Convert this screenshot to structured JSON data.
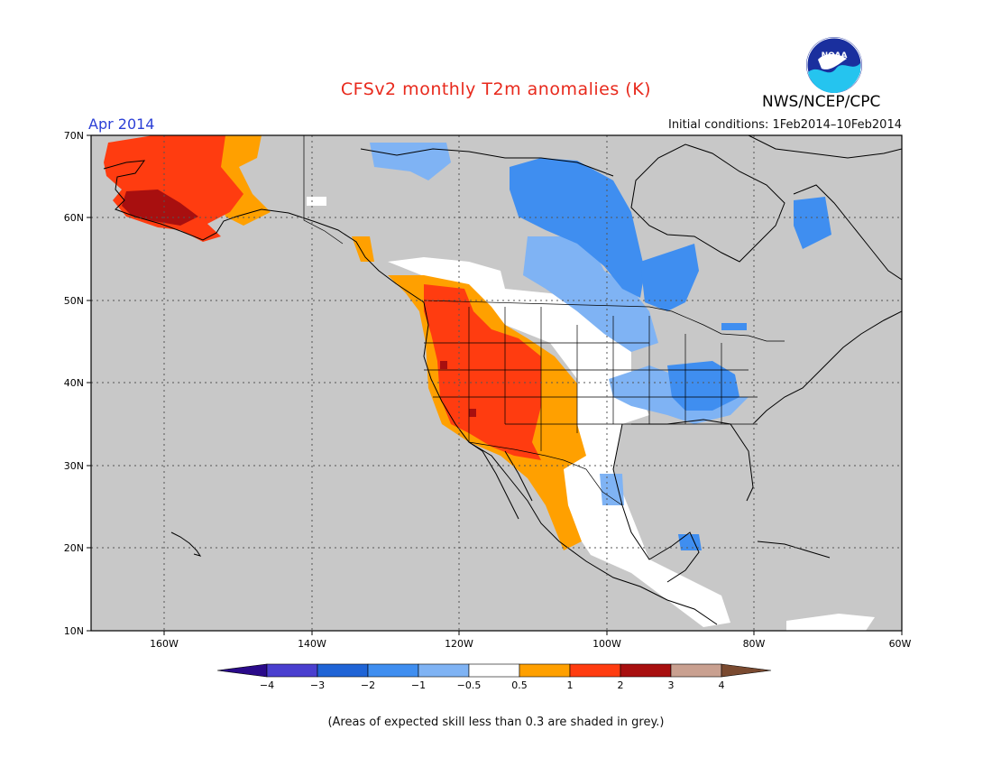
{
  "title": "CFSv2 monthly T2m anomalies (K)",
  "month": "Apr 2014",
  "org": "NWS/NCEP/CPC",
  "logo_text": "NOAA",
  "initial_conditions": "Initial conditions: 1Feb2014–10Feb2014",
  "note": "(Areas of expected skill less than 0.3 are shaded in grey.)",
  "map": {
    "lon_range": [
      -170,
      -60
    ],
    "lat_range": [
      10,
      70
    ],
    "lat_ticks": [
      "70N",
      "60N",
      "50N",
      "40N",
      "30N",
      "20N",
      "10N"
    ],
    "lon_ticks": [
      "160W",
      "140W",
      "120W",
      "100W",
      "80W",
      "60W"
    ],
    "grid": true,
    "background_color": "#c8c8c8"
  },
  "colorbar": {
    "labels": [
      "−4",
      "−3",
      "−2",
      "−1",
      "−0.5",
      "0.5",
      "1",
      "2",
      "3",
      "4"
    ],
    "colors": [
      "#2a0a8a",
      "#4a3fcf",
      "#1f64d6",
      "#3f8ef0",
      "#7fb3f4",
      "#ffffff",
      "#ffa000",
      "#ff3c10",
      "#a80f0f",
      "#c9a090",
      "#7a4a30"
    ]
  }
}
